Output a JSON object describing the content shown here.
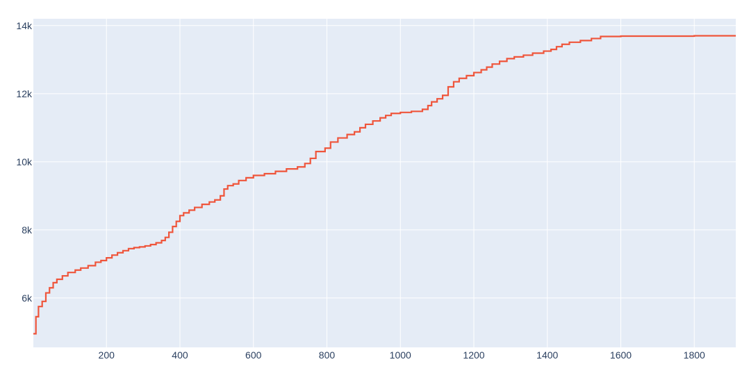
{
  "chart_data": {
    "type": "line",
    "line_shape": "step",
    "title": "",
    "xlabel": "",
    "ylabel": "",
    "xlim": [
      1,
      1913
    ],
    "ylim": [
      4550,
      14200
    ],
    "x_ticks": [
      200,
      400,
      600,
      800,
      1000,
      1200,
      1400,
      1600,
      1800
    ],
    "x_tick_labels": [
      "200",
      "400",
      "600",
      "800",
      "1000",
      "1200",
      "1400",
      "1600",
      "1800"
    ],
    "y_ticks": [
      6000,
      8000,
      10000,
      12000,
      14000
    ],
    "y_tick_labels": [
      "6k",
      "8k",
      "10k",
      "12k",
      "14k"
    ],
    "grid": true,
    "colors": {
      "plot_bg": "#e5ecf6",
      "grid": "#ffffff",
      "line": "#ef553b",
      "text": "#2a3f5f"
    },
    "series": [
      {
        "name": "",
        "x": [
          1,
          8,
          15,
          25,
          35,
          45,
          55,
          65,
          80,
          95,
          115,
          130,
          150,
          170,
          185,
          200,
          215,
          230,
          245,
          260,
          275,
          290,
          305,
          320,
          335,
          350,
          360,
          370,
          380,
          390,
          400,
          410,
          425,
          440,
          460,
          480,
          495,
          510,
          520,
          530,
          545,
          560,
          580,
          600,
          630,
          660,
          690,
          720,
          740,
          755,
          770,
          795,
          810,
          830,
          855,
          875,
          890,
          905,
          925,
          945,
          960,
          975,
          1000,
          1030,
          1060,
          1075,
          1085,
          1100,
          1115,
          1130,
          1145,
          1160,
          1180,
          1200,
          1220,
          1235,
          1250,
          1270,
          1290,
          1310,
          1335,
          1360,
          1390,
          1410,
          1425,
          1440,
          1460,
          1490,
          1520,
          1545,
          1600,
          1700,
          1800,
          1913
        ],
        "y": [
          4950,
          5450,
          5750,
          5900,
          6150,
          6300,
          6450,
          6550,
          6650,
          6750,
          6820,
          6880,
          6950,
          7050,
          7100,
          7180,
          7260,
          7330,
          7390,
          7450,
          7480,
          7500,
          7530,
          7570,
          7620,
          7690,
          7780,
          7930,
          8100,
          8250,
          8420,
          8500,
          8580,
          8660,
          8750,
          8820,
          8880,
          9000,
          9200,
          9300,
          9350,
          9450,
          9530,
          9600,
          9650,
          9720,
          9790,
          9850,
          9950,
          10100,
          10300,
          10400,
          10580,
          10700,
          10800,
          10880,
          11000,
          11100,
          11200,
          11290,
          11360,
          11420,
          11450,
          11480,
          11540,
          11650,
          11760,
          11850,
          11950,
          12200,
          12350,
          12450,
          12530,
          12620,
          12700,
          12780,
          12870,
          12950,
          13030,
          13080,
          13130,
          13190,
          13250,
          13300,
          13380,
          13450,
          13510,
          13560,
          13620,
          13680,
          13690,
          13690,
          13700,
          13700
        ]
      }
    ]
  }
}
